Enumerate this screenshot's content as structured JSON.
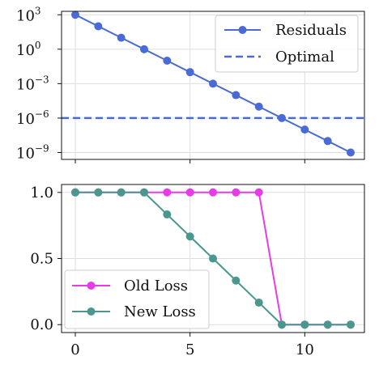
{
  "chart_data": [
    {
      "type": "line",
      "yscale": "log",
      "xlim": [
        -0.6,
        12.6
      ],
      "ylim_exp": [
        -9.6,
        3.3
      ],
      "yticks": [
        {
          "base": "10",
          "exp": "3",
          "value_exp": 3
        },
        {
          "base": "10",
          "exp": "0",
          "value_exp": 0
        },
        {
          "base": "10",
          "exp": "−3",
          "value_exp": -3
        },
        {
          "base": "10",
          "exp": "−6",
          "value_exp": -6
        },
        {
          "base": "10",
          "exp": "−9",
          "value_exp": -9
        }
      ],
      "xticks": [
        0,
        5,
        10
      ],
      "grid": true,
      "legend_position": "top-right",
      "series": [
        {
          "name": "Residuals",
          "style": "solid-markers",
          "color": "#4a6bd6",
          "x": [
            0,
            1,
            2,
            3,
            4,
            5,
            6,
            7,
            8,
            9,
            10,
            11,
            12
          ],
          "values": [
            1000.0,
            100.0,
            10.0,
            1.0,
            0.1,
            0.01,
            0.001,
            0.0001,
            1e-05,
            1e-06,
            1e-07,
            1e-08,
            1e-09
          ]
        },
        {
          "name": "Optimal",
          "style": "dashed",
          "color": "#4a6bd6",
          "hline": 1e-06
        }
      ]
    },
    {
      "type": "line",
      "xlim": [
        -0.6,
        12.6
      ],
      "ylim": [
        -0.06,
        1.06
      ],
      "yticks": [
        "1.0",
        "0.5",
        "0.0"
      ],
      "ytick_values": [
        1.0,
        0.5,
        0.0
      ],
      "xticks": [
        "0",
        "5",
        "10"
      ],
      "xtick_values": [
        0,
        5,
        10
      ],
      "grid": true,
      "legend_position": "bottom-left",
      "series": [
        {
          "name": "Old Loss",
          "color": "#e83be8",
          "x": [
            0,
            1,
            2,
            3,
            4,
            5,
            6,
            7,
            8,
            9,
            10,
            11,
            12
          ],
          "values": [
            1,
            1,
            1,
            1,
            1,
            1,
            1,
            1,
            1,
            0,
            0,
            0,
            0
          ]
        },
        {
          "name": "New Loss",
          "color": "#4a978e",
          "x": [
            0,
            1,
            2,
            3,
            4,
            5,
            6,
            7,
            8,
            9,
            10,
            11,
            12
          ],
          "values": [
            1,
            1,
            1,
            1,
            0.8333,
            0.6667,
            0.5,
            0.3333,
            0.1667,
            0,
            0,
            0,
            0
          ]
        }
      ]
    }
  ]
}
